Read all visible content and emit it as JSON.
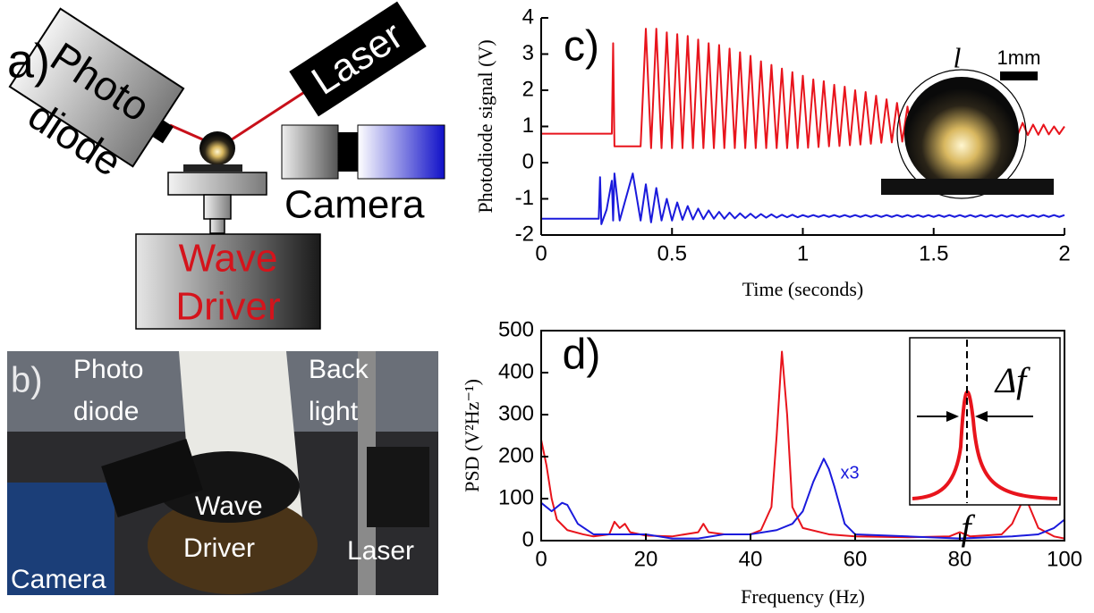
{
  "panel_a": {
    "label": "a)",
    "photodiode": [
      "Photo",
      "diode"
    ],
    "laser": "Laser",
    "camera": "Camera",
    "wave_driver": [
      "Wave",
      "Driver"
    ]
  },
  "panel_b": {
    "label": "b)",
    "photodiode": [
      "Photo",
      "diode"
    ],
    "backlight": [
      "Back",
      "light"
    ],
    "wave_driver": [
      "Wave",
      "Driver"
    ],
    "laser": "Laser",
    "camera": "Camera"
  },
  "chart_data": [
    {
      "type": "line",
      "panel_label": "c)",
      "xlabel": "Time (seconds)",
      "ylabel": "Photodiode signal (V)",
      "inset_labels": {
        "length": "l",
        "scale": "1mm"
      },
      "xlim": [
        0,
        2
      ],
      "xticks": [
        0,
        0.5,
        1,
        1.5,
        2
      ],
      "ylim": [
        -2,
        4
      ],
      "yticks": [
        -2,
        -1,
        0,
        1,
        2,
        3,
        4
      ],
      "x": [
        0,
        0.1,
        0.2,
        0.22,
        0.225,
        0.23,
        0.25,
        0.27,
        0.275,
        0.28,
        0.3,
        0.35,
        0.38,
        0.4,
        0.42,
        0.44,
        0.46,
        0.48,
        0.5,
        0.52,
        0.54,
        0.56,
        0.58,
        0.6,
        0.62,
        0.64,
        0.66,
        0.68,
        0.7,
        0.72,
        0.74,
        0.76,
        0.78,
        0.8,
        0.82,
        0.84,
        0.86,
        0.88,
        0.9,
        0.92,
        0.94,
        0.96,
        0.98,
        1.0,
        1.02,
        1.04,
        1.06,
        1.08,
        1.1,
        1.12,
        1.14,
        1.16,
        1.18,
        1.2,
        1.22,
        1.24,
        1.26,
        1.28,
        1.3,
        1.32,
        1.34,
        1.36,
        1.38,
        1.4,
        1.42,
        1.44,
        1.46,
        1.48,
        1.5,
        1.52,
        1.54,
        1.56,
        1.58,
        1.6,
        1.62,
        1.64,
        1.66,
        1.68,
        1.7,
        1.72,
        1.74,
        1.76,
        1.78,
        1.8,
        1.82,
        1.84,
        1.86,
        1.88,
        1.9,
        1.92,
        1.94,
        1.96,
        1.98,
        2.0
      ],
      "series": [
        {
          "color": "#e8141c",
          "values": [
            0.8,
            0.8,
            0.8,
            0.8,
            0.8,
            0.8,
            0.8,
            0.8,
            3.3,
            0.45,
            0.45,
            0.45,
            0.45,
            3.7,
            0.4,
            3.7,
            0.4,
            3.6,
            0.4,
            3.55,
            0.4,
            3.5,
            0.4,
            3.4,
            0.4,
            3.3,
            0.4,
            3.25,
            0.4,
            3.15,
            0.4,
            3.05,
            0.4,
            2.95,
            0.4,
            2.8,
            0.4,
            2.7,
            0.4,
            2.6,
            0.4,
            2.5,
            0.4,
            2.4,
            0.41,
            2.3,
            0.43,
            2.25,
            0.45,
            2.15,
            0.46,
            2.1,
            0.48,
            2.0,
            0.5,
            1.95,
            0.52,
            1.85,
            0.55,
            1.75,
            0.56,
            1.65,
            0.58,
            1.55,
            0.6,
            1.45,
            0.62,
            1.35,
            0.65,
            1.3,
            0.66,
            1.3,
            0.67,
            1.25,
            0.68,
            1.2,
            0.7,
            1.2,
            0.71,
            1.15,
            0.72,
            1.15,
            0.74,
            1.1,
            0.75,
            1.1,
            0.76,
            1.05,
            0.77,
            1.05,
            0.78,
            1.0,
            0.79,
            1.0
          ]
        },
        {
          "color": "#1a1adc",
          "values": [
            -1.55,
            -1.55,
            -1.55,
            -1.55,
            -0.4,
            -1.7,
            -1.3,
            -0.5,
            -1.6,
            -0.3,
            -1.6,
            -0.3,
            -1.6,
            -0.6,
            -1.65,
            -0.7,
            -1.6,
            -1.0,
            -1.6,
            -1.1,
            -1.58,
            -1.2,
            -1.57,
            -1.27,
            -1.56,
            -1.32,
            -1.55,
            -1.36,
            -1.55,
            -1.38,
            -1.54,
            -1.4,
            -1.53,
            -1.41,
            -1.53,
            -1.42,
            -1.52,
            -1.43,
            -1.52,
            -1.44,
            -1.51,
            -1.44,
            -1.51,
            -1.45,
            -1.5,
            -1.45,
            -1.5,
            -1.45,
            -1.5,
            -1.45,
            -1.5,
            -1.45,
            -1.5,
            -1.45,
            -1.5,
            -1.45,
            -1.5,
            -1.45,
            -1.5,
            -1.45,
            -1.5,
            -1.45,
            -1.5,
            -1.45,
            -1.5,
            -1.45,
            -1.5,
            -1.45,
            -1.5,
            -1.45,
            -1.5,
            -1.45,
            -1.5,
            -1.45,
            -1.5,
            -1.45,
            -1.5,
            -1.45,
            -1.5,
            -1.45,
            -1.5,
            -1.45,
            -1.5,
            -1.45,
            -1.5,
            -1.45,
            -1.5,
            -1.45,
            -1.5,
            -1.45,
            -1.5,
            -1.45,
            -1.5,
            -1.45
          ]
        }
      ]
    },
    {
      "type": "line",
      "panel_label": "d)",
      "xlabel": "Frequency (Hz)",
      "ylabel": "PSD (V²Hz⁻¹)",
      "annotation": "x3",
      "inset_labels": {
        "width": "Δf",
        "frequency": "f"
      },
      "frame": true,
      "xlim": [
        0,
        100
      ],
      "xticks": [
        0,
        20,
        40,
        60,
        80,
        100
      ],
      "ylim": [
        0,
        500
      ],
      "yticks": [
        0,
        100,
        200,
        300,
        400,
        500
      ],
      "series": [
        {
          "color": "#e8141c",
          "x": [
            0,
            1,
            2,
            3,
            5,
            8,
            10,
            13,
            14,
            15,
            16,
            17,
            20,
            25,
            30,
            31,
            32,
            35,
            40,
            42,
            44,
            45,
            46,
            47,
            48,
            50,
            55,
            60,
            70,
            78,
            80,
            82,
            88,
            90,
            92,
            93,
            95,
            98,
            100
          ],
          "values": [
            240,
            180,
            100,
            50,
            25,
            15,
            10,
            15,
            45,
            30,
            40,
            20,
            12,
            10,
            20,
            40,
            20,
            15,
            15,
            25,
            80,
            250,
            450,
            300,
            80,
            30,
            15,
            10,
            8,
            10,
            20,
            10,
            15,
            40,
            95,
            90,
            30,
            10,
            5
          ]
        },
        {
          "color": "#1a1adc",
          "x": [
            0,
            2,
            4,
            5,
            7,
            10,
            15,
            20,
            25,
            30,
            35,
            40,
            45,
            48,
            50,
            52,
            54,
            55,
            56,
            58,
            60,
            70,
            80,
            90,
            95,
            98,
            100
          ],
          "values": [
            90,
            70,
            90,
            85,
            40,
            15,
            15,
            15,
            5,
            5,
            15,
            15,
            25,
            40,
            70,
            140,
            195,
            170,
            130,
            40,
            15,
            10,
            5,
            10,
            15,
            30,
            50
          ]
        }
      ]
    }
  ]
}
